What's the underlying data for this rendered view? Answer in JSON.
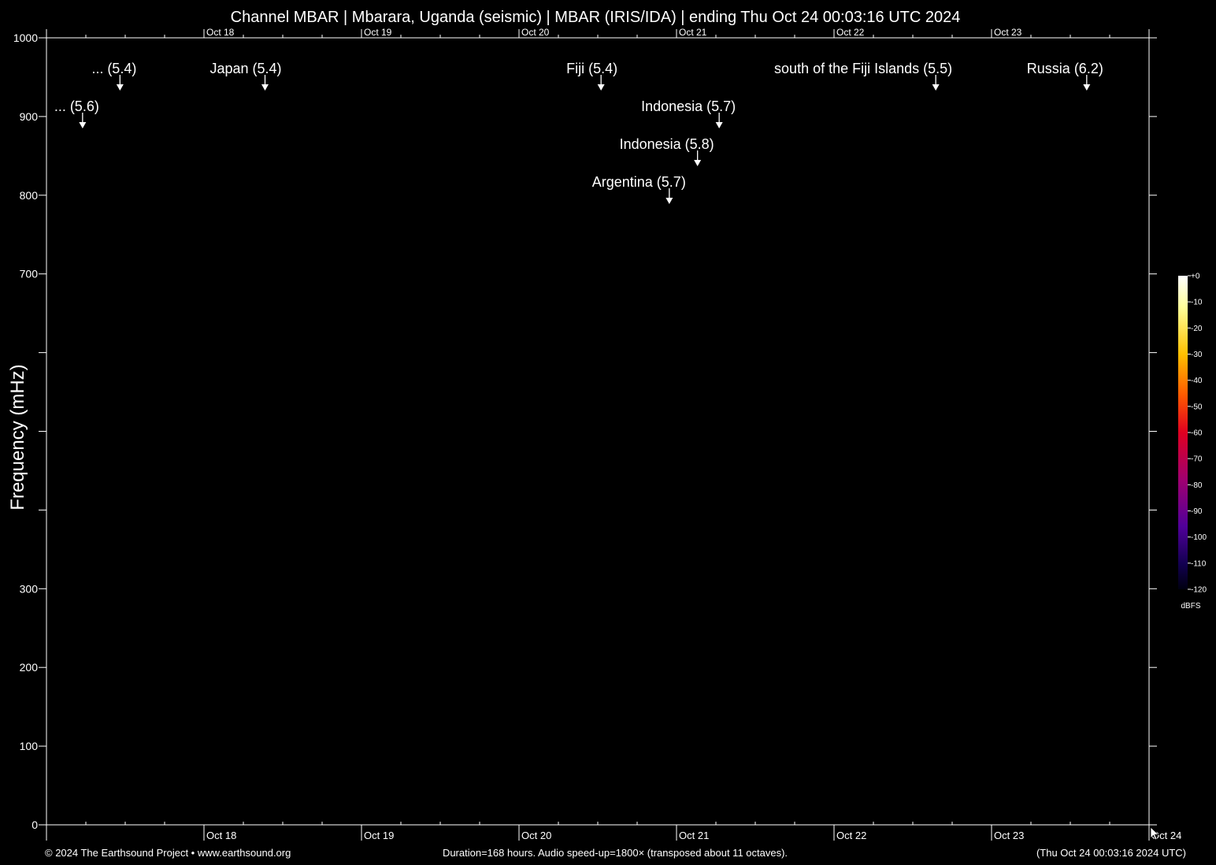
{
  "chart_data": {
    "type": "heatmap",
    "title": "Channel MBAR | Mbarara, Uganda (seismic) | MBAR (IRIS/IDA) | ending Thu Oct 24 00:03:16 UTC 2024",
    "ylabel": "Frequency (mHz)",
    "xlabel": "",
    "ylim": [
      0,
      1000
    ],
    "y_tick_labels": [
      {
        "value": 0,
        "label": "0"
      },
      {
        "value": 100,
        "label": "100"
      },
      {
        "value": 200,
        "label": "200"
      },
      {
        "value": 300,
        "label": "300"
      },
      {
        "value": 400,
        "label": ""
      },
      {
        "value": 500,
        "label": ""
      },
      {
        "value": 600,
        "label": ""
      },
      {
        "value": 700,
        "label": "700"
      },
      {
        "value": 800,
        "label": "800"
      },
      {
        "value": 900,
        "label": "900"
      },
      {
        "value": 1000,
        "label": "1000"
      }
    ],
    "xlim_hours": [
      0,
      168
    ],
    "x_tick_labels": [
      {
        "hour": 24,
        "label": "Oct 18"
      },
      {
        "hour": 48,
        "label": "Oct 19"
      },
      {
        "hour": 72,
        "label": "Oct 20"
      },
      {
        "hour": 96,
        "label": "Oct 21"
      },
      {
        "hour": 120,
        "label": "Oct 22"
      },
      {
        "hour": 144,
        "label": "Oct 23"
      },
      {
        "hour": 168,
        "label": "Oct 24"
      }
    ],
    "events": [
      {
        "label": "... (5.6)",
        "hour": 5.5,
        "row": 1
      },
      {
        "label": "... (5.4)",
        "hour": 11.2,
        "row": 0
      },
      {
        "label": "Japan (5.4)",
        "hour": 33.3,
        "row": 0
      },
      {
        "label": "Fiji (5.4)",
        "hour": 84.5,
        "row": 0
      },
      {
        "label": "Indonesia (5.7)",
        "hour": 102.5,
        "row": 1
      },
      {
        "label": "Indonesia (5.8)",
        "hour": 99.2,
        "row": 2
      },
      {
        "label": "Argentina (5.7)",
        "hour": 94.9,
        "row": 3
      },
      {
        "label": "south of the Fiji Islands (5.5)",
        "hour": 135.5,
        "row": 0
      },
      {
        "label": "Russia (6.2)",
        "hour": 158.5,
        "row": 0
      }
    ],
    "colorbar": {
      "unit": "dBFS",
      "ticks": [
        "+0",
        "-10",
        "-20",
        "-30",
        "-40",
        "-50",
        "-60",
        "-70",
        "-80",
        "-90",
        "-100",
        "-110",
        "-120"
      ]
    },
    "grid": false
  },
  "footer": {
    "left": "© 2024 The Earthsound Project • www.earthsound.org",
    "center": "Duration=168 hours. Audio speed-up=1800× (transposed about 11 octaves).",
    "right": "(Thu Oct 24 00:03:16 2024 UTC)"
  }
}
